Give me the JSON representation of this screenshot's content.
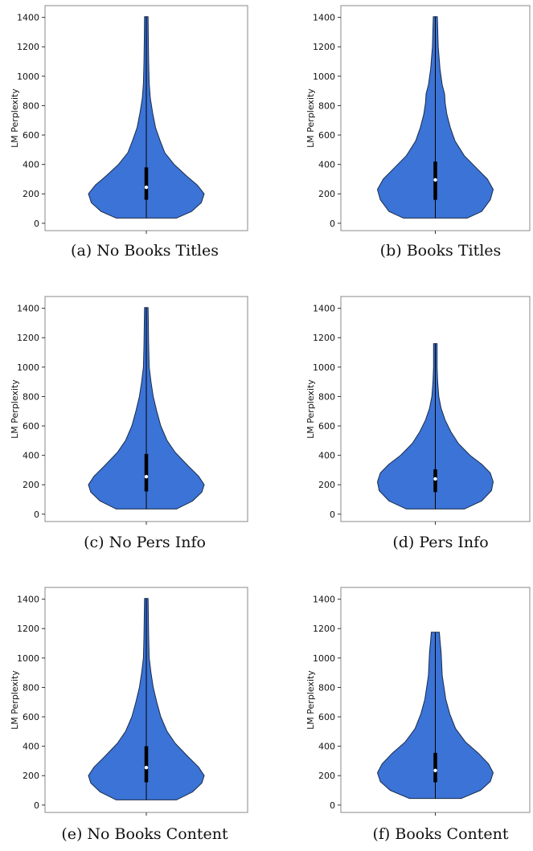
{
  "chart_data": [
    {
      "type": "violin",
      "caption": "(a) No Books Titles",
      "ylabel": "LM Perplexity",
      "yticks": [
        0,
        200,
        400,
        600,
        800,
        1000,
        1200,
        1400
      ],
      "ylim": [
        -50,
        1480
      ],
      "min": 35,
      "max": 1405,
      "q1": 160,
      "median": 245,
      "q3": 380,
      "density": [
        [
          35,
          0.52
        ],
        [
          80,
          0.78
        ],
        [
          140,
          0.95
        ],
        [
          200,
          1.0
        ],
        [
          260,
          0.88
        ],
        [
          320,
          0.7
        ],
        [
          400,
          0.48
        ],
        [
          480,
          0.32
        ],
        [
          560,
          0.24
        ],
        [
          650,
          0.16
        ],
        [
          750,
          0.11
        ],
        [
          850,
          0.07
        ],
        [
          950,
          0.05
        ],
        [
          1100,
          0.04
        ],
        [
          1250,
          0.035
        ],
        [
          1405,
          0.03
        ]
      ]
    },
    {
      "type": "violin",
      "caption": "(b) Books Titles",
      "ylabel": "LM Perplexity",
      "yticks": [
        0,
        200,
        400,
        600,
        800,
        1000,
        1200,
        1400
      ],
      "ylim": [
        -50,
        1480
      ],
      "min": 35,
      "max": 1405,
      "q1": 160,
      "median": 295,
      "q3": 420,
      "density": [
        [
          35,
          0.55
        ],
        [
          80,
          0.8
        ],
        [
          160,
          0.95
        ],
        [
          230,
          1.0
        ],
        [
          300,
          0.9
        ],
        [
          380,
          0.7
        ],
        [
          460,
          0.5
        ],
        [
          560,
          0.34
        ],
        [
          650,
          0.26
        ],
        [
          740,
          0.2
        ],
        [
          820,
          0.17
        ],
        [
          880,
          0.16
        ],
        [
          940,
          0.12
        ],
        [
          1050,
          0.08
        ],
        [
          1200,
          0.05
        ],
        [
          1405,
          0.035
        ]
      ]
    },
    {
      "type": "violin",
      "caption": "(c) No Pers Info",
      "ylabel": "LM Perplexity",
      "yticks": [
        0,
        200,
        400,
        600,
        800,
        1000,
        1200,
        1400
      ],
      "ylim": [
        -50,
        1480
      ],
      "min": 35,
      "max": 1405,
      "q1": 155,
      "median": 255,
      "q3": 410,
      "density": [
        [
          35,
          0.52
        ],
        [
          90,
          0.8
        ],
        [
          150,
          0.96
        ],
        [
          200,
          1.0
        ],
        [
          260,
          0.9
        ],
        [
          330,
          0.72
        ],
        [
          420,
          0.5
        ],
        [
          500,
          0.36
        ],
        [
          600,
          0.25
        ],
        [
          700,
          0.18
        ],
        [
          800,
          0.12
        ],
        [
          900,
          0.08
        ],
        [
          1000,
          0.05
        ],
        [
          1150,
          0.04
        ],
        [
          1300,
          0.035
        ],
        [
          1405,
          0.03
        ]
      ]
    },
    {
      "type": "violin",
      "caption": "(d) Pers Info",
      "ylabel": "LM Perplexity",
      "yticks": [
        0,
        200,
        400,
        600,
        800,
        1000,
        1200,
        1400
      ],
      "ylim": [
        -50,
        1480
      ],
      "min": 35,
      "max": 1160,
      "q1": 150,
      "median": 240,
      "q3": 305,
      "density": [
        [
          35,
          0.5
        ],
        [
          90,
          0.8
        ],
        [
          160,
          0.97
        ],
        [
          220,
          1.0
        ],
        [
          280,
          0.95
        ],
        [
          340,
          0.8
        ],
        [
          400,
          0.6
        ],
        [
          480,
          0.4
        ],
        [
          560,
          0.27
        ],
        [
          640,
          0.17
        ],
        [
          720,
          0.1
        ],
        [
          800,
          0.06
        ],
        [
          900,
          0.04
        ],
        [
          1000,
          0.03
        ],
        [
          1100,
          0.03
        ],
        [
          1160,
          0.03
        ]
      ]
    },
    {
      "type": "violin",
      "caption": "(e) No Books Content",
      "ylabel": "LM Perplexity",
      "yticks": [
        0,
        200,
        400,
        600,
        800,
        1000,
        1200,
        1400
      ],
      "ylim": [
        -50,
        1480
      ],
      "min": 35,
      "max": 1405,
      "q1": 155,
      "median": 255,
      "q3": 400,
      "density": [
        [
          35,
          0.52
        ],
        [
          90,
          0.8
        ],
        [
          150,
          0.96
        ],
        [
          200,
          1.0
        ],
        [
          260,
          0.9
        ],
        [
          330,
          0.72
        ],
        [
          420,
          0.5
        ],
        [
          500,
          0.36
        ],
        [
          600,
          0.25
        ],
        [
          700,
          0.18
        ],
        [
          800,
          0.12
        ],
        [
          900,
          0.08
        ],
        [
          1000,
          0.05
        ],
        [
          1150,
          0.04
        ],
        [
          1300,
          0.035
        ],
        [
          1405,
          0.03
        ]
      ]
    },
    {
      "type": "violin",
      "caption": "(f) Books Content",
      "ylabel": "LM Perplexity",
      "yticks": [
        0,
        200,
        400,
        600,
        800,
        1000,
        1200,
        1400
      ],
      "ylim": [
        -50,
        1480
      ],
      "min": 45,
      "max": 1175,
      "q1": 155,
      "median": 235,
      "q3": 355,
      "density": [
        [
          45,
          0.45
        ],
        [
          100,
          0.78
        ],
        [
          160,
          0.95
        ],
        [
          220,
          1.0
        ],
        [
          280,
          0.92
        ],
        [
          350,
          0.75
        ],
        [
          430,
          0.52
        ],
        [
          520,
          0.35
        ],
        [
          620,
          0.25
        ],
        [
          720,
          0.18
        ],
        [
          800,
          0.15
        ],
        [
          880,
          0.12
        ],
        [
          960,
          0.11
        ],
        [
          1040,
          0.1
        ],
        [
          1120,
          0.08
        ],
        [
          1175,
          0.07
        ]
      ]
    }
  ],
  "colors": {
    "fill": "#3b73d6",
    "outline": "#1a2c4a",
    "box": "#000000",
    "median": "#ffffff",
    "frame": "#888888"
  }
}
